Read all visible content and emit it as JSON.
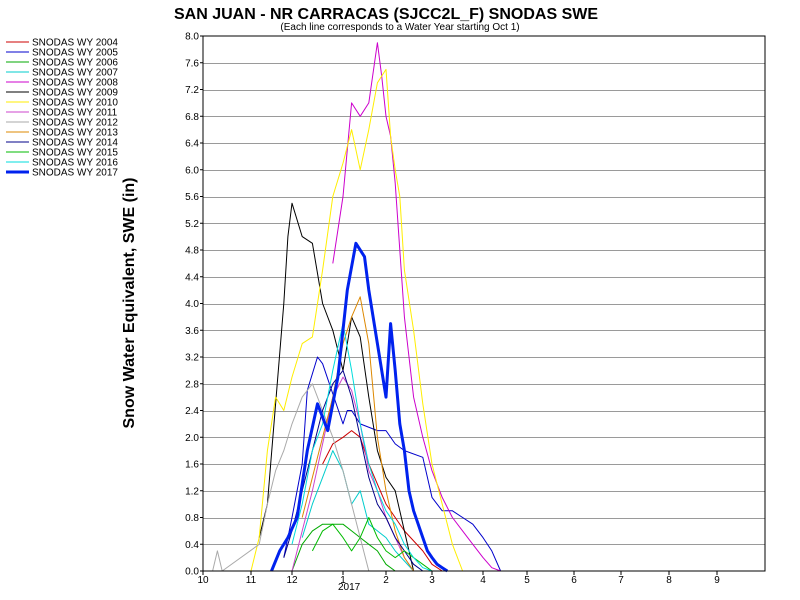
{
  "chart_data": {
    "type": "line",
    "title": "SAN JUAN - NR CARRACAS (SJCC2L_F) SNODAS SWE",
    "subtitle": "(Each line corresponds to a Water Year starting Oct 1)",
    "ylabel": "Snow Water Equivalent, SWE (in)",
    "xlabel": "",
    "x_axis_label_year": "2017",
    "x_ticks": [
      "10",
      "11",
      "12",
      "1",
      "2",
      "3",
      "4",
      "5",
      "6",
      "7",
      "8",
      "9"
    ],
    "y_ticks": [
      "0.0",
      "0.4",
      "0.8",
      "1.2",
      "1.6",
      "2.0",
      "2.4",
      "2.8",
      "3.2",
      "3.6",
      "4.0",
      "4.4",
      "4.8",
      "5.2",
      "5.6",
      "6.0",
      "6.4",
      "6.8",
      "7.2",
      "7.6",
      "8.0"
    ],
    "ylim": [
      0,
      8.0
    ],
    "xlim": [
      0,
      11.9
    ],
    "grid": true,
    "legend_position": "left",
    "series": [
      {
        "name": "SNODAS WY 2004",
        "color": "#cc0000",
        "width": 1,
        "x": [
          2.6,
          2.8,
          3.0,
          3.2,
          3.4,
          3.6,
          3.8,
          4.0,
          4.2,
          4.4,
          4.6,
          4.8,
          5.0,
          5.2
        ],
        "y": [
          1.6,
          1.9,
          2.0,
          2.1,
          2.0,
          1.6,
          1.3,
          1.0,
          0.8,
          0.6,
          0.45,
          0.3,
          0.1,
          0.0
        ]
      },
      {
        "name": "SNODAS WY 2005",
        "color": "#0000cc",
        "width": 1,
        "x": [
          1.8,
          2.0,
          2.2,
          2.3,
          2.5,
          2.6,
          3.0,
          3.1,
          3.2,
          3.4,
          3.8,
          4.0,
          4.2,
          4.4,
          4.8,
          5.0,
          5.2,
          5.4,
          5.6,
          5.8,
          6.0,
          6.2,
          6.4
        ],
        "y": [
          0.2,
          0.8,
          1.6,
          2.7,
          3.2,
          3.1,
          2.2,
          2.4,
          2.4,
          2.2,
          2.1,
          2.1,
          1.9,
          1.8,
          1.7,
          1.1,
          0.9,
          0.9,
          0.8,
          0.7,
          0.5,
          0.3,
          0.0
        ]
      },
      {
        "name": "SNODAS WY 2006",
        "color": "#00aa00",
        "width": 1,
        "x": [
          2.0,
          2.2,
          2.4,
          2.6,
          2.8,
          3.0,
          3.2,
          3.4,
          3.6,
          3.8,
          4.0,
          4.2
        ],
        "y": [
          0.0,
          0.4,
          0.6,
          0.7,
          0.7,
          0.7,
          0.6,
          0.5,
          0.4,
          0.3,
          0.1,
          0.0
        ]
      },
      {
        "name": "SNODAS WY 2007",
        "color": "#00cccc",
        "width": 1,
        "x": [
          2.2,
          2.4,
          2.6,
          2.8,
          3.0,
          3.2,
          3.4,
          3.6,
          3.8,
          4.0,
          4.2,
          4.4,
          4.6
        ],
        "y": [
          0.5,
          1.0,
          1.4,
          1.8,
          1.5,
          1.0,
          1.2,
          0.7,
          0.6,
          0.5,
          0.3,
          0.15,
          0.0
        ]
      },
      {
        "name": "SNODAS WY 2008",
        "color": "#cc00cc",
        "width": 1,
        "x": [
          2.8,
          3.0,
          3.2,
          3.4,
          3.6,
          3.8,
          3.9,
          4.0,
          4.1,
          4.2,
          4.3,
          4.4,
          4.5,
          4.6,
          4.8,
          5.0,
          5.2,
          5.4,
          5.6,
          5.8,
          6.0,
          6.2,
          6.4
        ],
        "y": [
          4.6,
          5.6,
          7.0,
          6.8,
          7.0,
          7.9,
          7.4,
          6.8,
          6.5,
          5.8,
          4.8,
          3.8,
          3.2,
          2.6,
          2.0,
          1.5,
          1.1,
          0.8,
          0.6,
          0.4,
          0.2,
          0.05,
          0.0
        ]
      },
      {
        "name": "SNODAS WY 2009",
        "color": "#000000",
        "width": 1,
        "x": [
          1.2,
          1.4,
          1.6,
          1.8,
          1.9,
          2.0,
          2.2,
          2.4,
          2.6,
          2.8,
          3.0,
          3.2,
          3.4,
          3.6,
          3.8,
          4.0,
          4.2,
          4.4,
          4.6
        ],
        "y": [
          0.5,
          1.0,
          2.5,
          4.0,
          5.0,
          5.5,
          5.0,
          4.9,
          4.0,
          3.6,
          3.0,
          3.8,
          3.5,
          2.6,
          1.8,
          1.4,
          1.2,
          0.6,
          0.0
        ]
      },
      {
        "name": "SNODAS WY 2010",
        "color": "#ffee00",
        "width": 1,
        "x": [
          1.0,
          1.2,
          1.4,
          1.6,
          1.8,
          2.0,
          2.2,
          2.4,
          2.6,
          2.8,
          3.0,
          3.2,
          3.4,
          3.6,
          3.8,
          4.0,
          4.1,
          4.2,
          4.3,
          4.4,
          4.6,
          4.8,
          5.0,
          5.2,
          5.4,
          5.6
        ],
        "y": [
          0.0,
          0.5,
          1.8,
          2.6,
          2.4,
          2.9,
          3.4,
          3.5,
          4.5,
          5.6,
          6.1,
          6.6,
          6.0,
          6.6,
          7.3,
          7.5,
          6.5,
          6.0,
          5.6,
          4.5,
          3.6,
          2.5,
          1.6,
          1.0,
          0.4,
          0.0
        ]
      },
      {
        "name": "SNODAS WY 2011",
        "color": "#cc44cc",
        "width": 1,
        "x": [
          2.0,
          2.2,
          2.4,
          2.6,
          2.8,
          3.0,
          3.2,
          3.4,
          3.6,
          3.8,
          4.0,
          4.2,
          4.4,
          4.6
        ],
        "y": [
          0.0,
          0.6,
          1.2,
          1.9,
          2.6,
          2.9,
          2.7,
          2.2,
          1.5,
          1.2,
          0.8,
          0.5,
          0.2,
          0.0
        ]
      },
      {
        "name": "SNODAS WY 2012",
        "color": "#aaaaaa",
        "width": 1,
        "x": [
          0.2,
          0.3,
          0.4,
          1.2,
          1.4,
          1.6,
          1.8,
          2.0,
          2.2,
          2.4,
          2.6,
          2.8,
          3.0,
          3.2,
          3.4,
          3.6
        ],
        "y": [
          0.0,
          0.3,
          0.0,
          0.4,
          1.0,
          1.5,
          1.8,
          2.2,
          2.6,
          2.8,
          2.4,
          2.0,
          1.5,
          1.0,
          0.5,
          0.0
        ]
      },
      {
        "name": "SNODAS WY 2013",
        "color": "#dd8800",
        "width": 1,
        "x": [
          2.2,
          2.4,
          2.6,
          2.8,
          3.0,
          3.2,
          3.4,
          3.6,
          3.8,
          4.0,
          4.2,
          4.4,
          4.6
        ],
        "y": [
          0.8,
          1.4,
          2.0,
          2.6,
          3.4,
          3.8,
          4.1,
          3.4,
          2.0,
          1.2,
          0.6,
          0.2,
          0.0
        ]
      },
      {
        "name": "SNODAS WY 2014",
        "color": "#000088",
        "width": 1,
        "x": [
          1.8,
          2.0,
          2.2,
          2.4,
          2.6,
          2.8,
          3.0,
          3.2,
          3.4,
          3.6,
          3.8,
          4.0,
          4.2,
          4.4,
          4.6,
          4.8
        ],
        "y": [
          0.2,
          0.6,
          1.2,
          1.8,
          2.4,
          2.8,
          3.0,
          2.6,
          2.0,
          1.4,
          1.0,
          0.8,
          0.5,
          0.3,
          0.1,
          0.0
        ]
      },
      {
        "name": "SNODAS WY 2015",
        "color": "#00bb00",
        "width": 1,
        "x": [
          2.4,
          2.6,
          2.8,
          3.0,
          3.2,
          3.4,
          3.6,
          3.8,
          4.0,
          4.2,
          4.4,
          4.6,
          4.8,
          5.0
        ],
        "y": [
          0.3,
          0.6,
          0.7,
          0.5,
          0.3,
          0.5,
          0.8,
          0.5,
          0.3,
          0.2,
          0.3,
          0.2,
          0.1,
          0.0
        ]
      },
      {
        "name": "SNODAS WY 2016",
        "color": "#00dddd",
        "width": 1,
        "x": [
          2.0,
          2.2,
          2.4,
          2.6,
          2.8,
          3.0,
          3.2,
          3.4,
          3.6,
          3.8,
          4.0,
          4.2,
          4.4,
          4.6,
          4.8,
          5.0
        ],
        "y": [
          0.4,
          1.0,
          1.8,
          2.2,
          3.0,
          3.7,
          3.0,
          2.2,
          1.6,
          1.2,
          0.9,
          0.7,
          0.4,
          0.2,
          0.05,
          0.0
        ]
      },
      {
        "name": "SNODAS WY 2017",
        "color": "#0022ee",
        "width": 3,
        "x": [
          1.5,
          1.7,
          1.9,
          2.1,
          2.3,
          2.5,
          2.7,
          2.9,
          3.1,
          3.3,
          3.5,
          3.6,
          3.7,
          3.8,
          3.9,
          4.0,
          4.1,
          4.2,
          4.3,
          4.4,
          4.5,
          4.6,
          4.7,
          4.8,
          4.9,
          5.0,
          5.1,
          5.2,
          5.3
        ],
        "y": [
          0.0,
          0.3,
          0.5,
          0.8,
          1.8,
          2.5,
          2.1,
          2.9,
          4.2,
          4.9,
          4.7,
          4.2,
          3.8,
          3.4,
          3.0,
          2.6,
          3.7,
          3.0,
          2.2,
          1.8,
          1.2,
          0.9,
          0.7,
          0.5,
          0.3,
          0.2,
          0.1,
          0.05,
          0.0
        ]
      }
    ]
  }
}
